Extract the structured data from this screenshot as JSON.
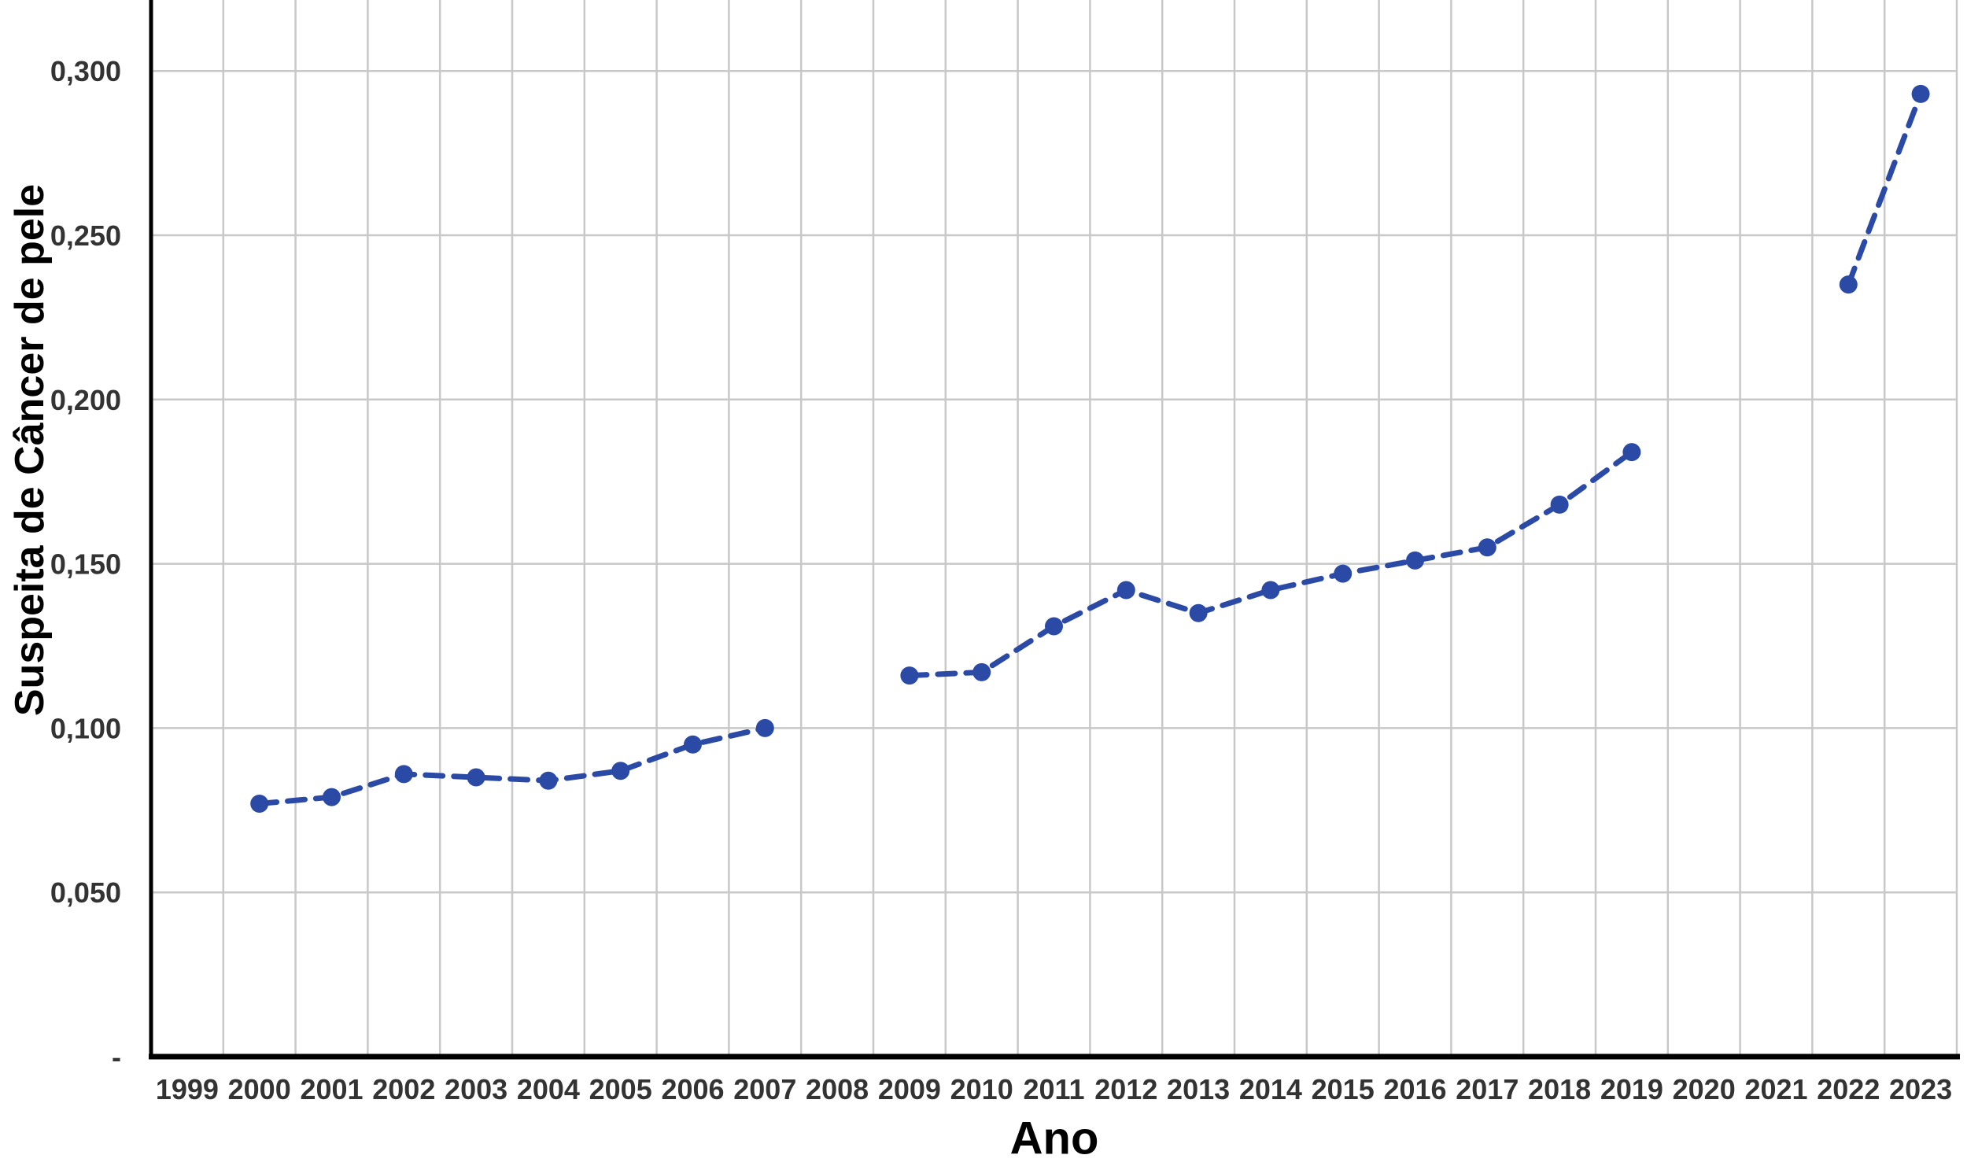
{
  "chart_data": {
    "type": "line",
    "title": "",
    "xlabel": "Ano",
    "ylabel": "Suspeita de Câncer de pele",
    "categories": [
      "1999",
      "2000",
      "2001",
      "2002",
      "2003",
      "2004",
      "2005",
      "2006",
      "2007",
      "2008",
      "2009",
      "2010",
      "2011",
      "2012",
      "2013",
      "2014",
      "2015",
      "2016",
      "2017",
      "2018",
      "2019",
      "2020",
      "2021",
      "2022",
      "2023"
    ],
    "series": [
      {
        "name": "Suspeita de Câncer de pele",
        "values": [
          null,
          0.077,
          0.079,
          0.086,
          0.085,
          0.084,
          0.087,
          0.095,
          0.1,
          null,
          0.116,
          0.117,
          0.131,
          0.142,
          0.135,
          0.142,
          0.147,
          0.151,
          0.155,
          0.168,
          0.184,
          null,
          null,
          0.235,
          0.293
        ]
      }
    ],
    "y_ticks": [
      {
        "value": 0.0,
        "label": "-"
      },
      {
        "value": 0.05,
        "label": "0,050"
      },
      {
        "value": 0.1,
        "label": "0,100"
      },
      {
        "value": 0.15,
        "label": "0,150"
      },
      {
        "value": 0.2,
        "label": "0,200"
      },
      {
        "value": 0.25,
        "label": "0,250"
      },
      {
        "value": 0.3,
        "label": "0,300"
      }
    ],
    "ylim": [
      0,
      0.3216
    ],
    "grid": true,
    "legend_position": "none",
    "line_style": "dashed",
    "marker": "circle",
    "colors": {
      "series": "#2b4aa6",
      "grid": "#c8c8c8",
      "axis": "#000000",
      "tick_labels": "#333333",
      "axis_titles": "#000000",
      "background": "#ffffff"
    }
  }
}
